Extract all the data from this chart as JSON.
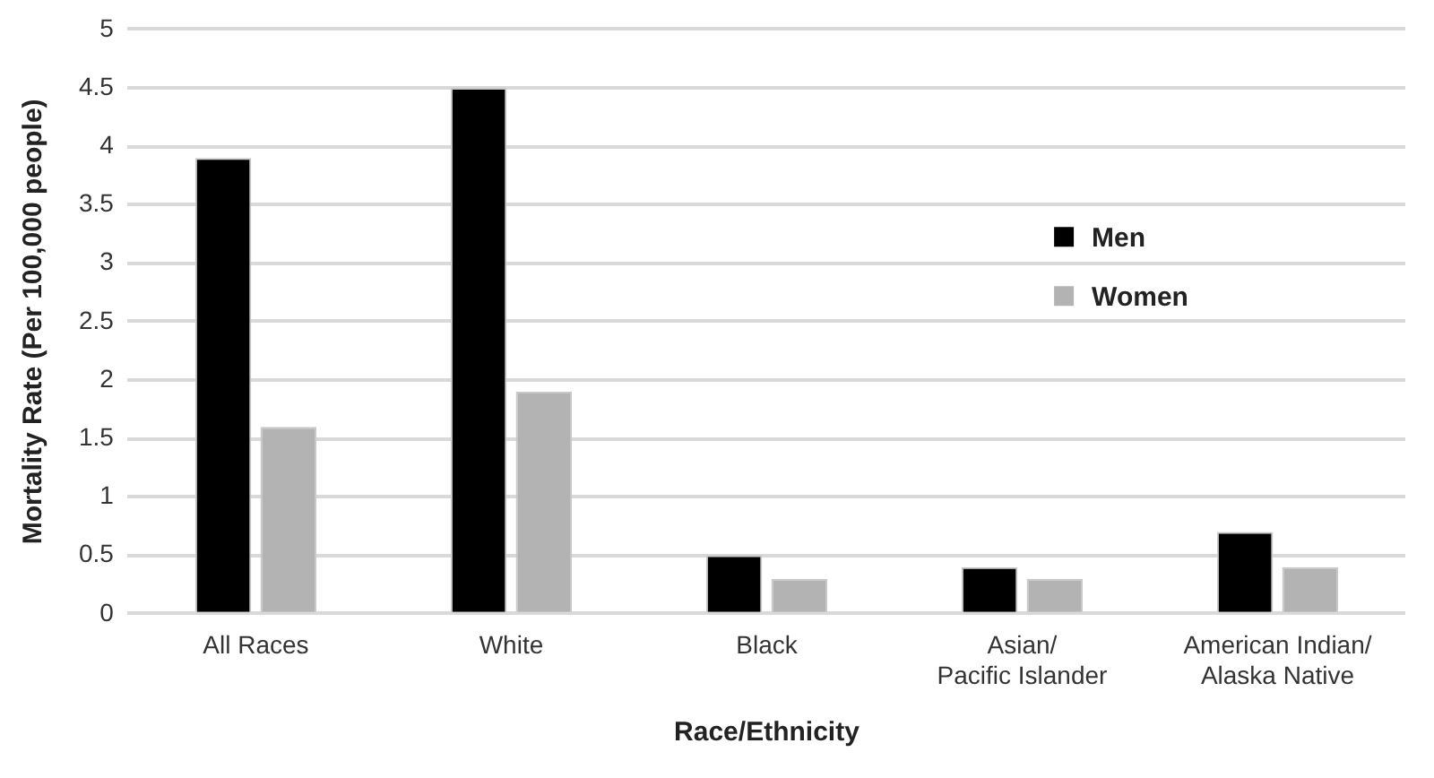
{
  "chart_data": {
    "type": "bar",
    "categories": [
      "All Races",
      "White",
      "Black",
      "Asian/\nPacific Islander",
      "American Indian/\nAlaska Native"
    ],
    "series": [
      {
        "name": "Men",
        "color": "#000000",
        "values": [
          3.9,
          4.5,
          0.5,
          0.4,
          0.7
        ]
      },
      {
        "name": "Women",
        "color": "#b3b3b3",
        "values": [
          1.6,
          1.9,
          0.3,
          0.3,
          0.4
        ]
      }
    ],
    "xlabel": "Race/Ethnicity",
    "ylabel": "Mortality Rate (Per 100,000 people)",
    "ylim": [
      0,
      5
    ],
    "yticks": [
      0,
      0.5,
      1,
      1.5,
      2,
      2.5,
      3,
      3.5,
      4,
      4.5,
      5
    ],
    "grid": "y",
    "legend": "right"
  }
}
